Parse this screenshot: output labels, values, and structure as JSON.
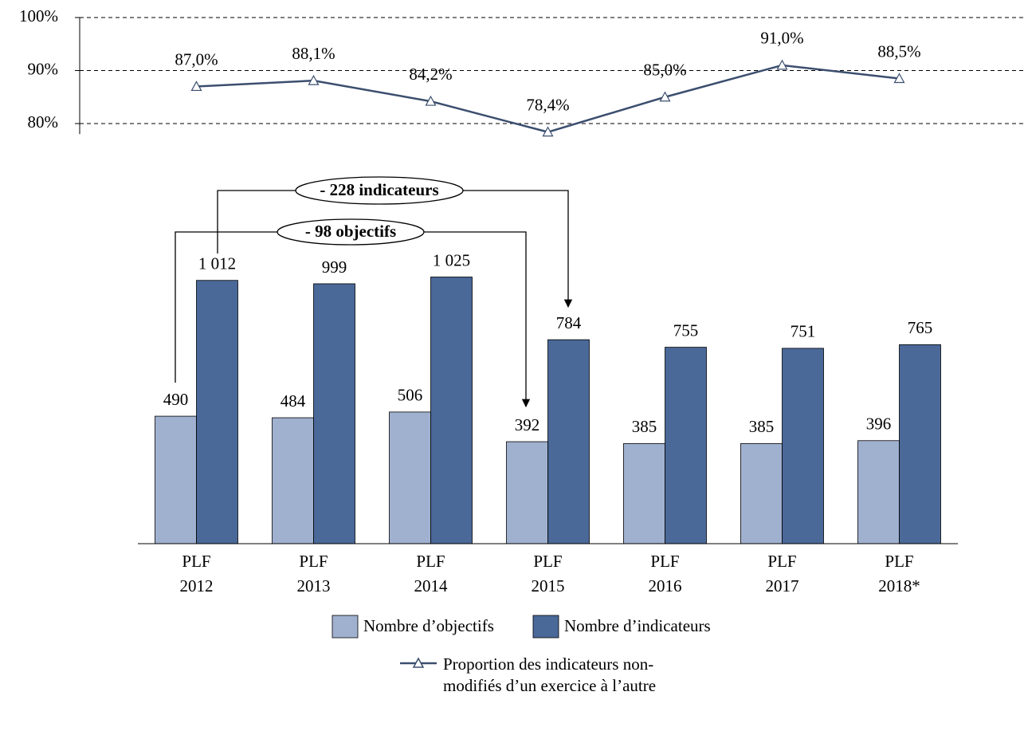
{
  "chart_data": [
    {
      "type": "line",
      "ylim": [
        78,
        100
      ],
      "yticks": [
        {
          "value": 80,
          "label": "80%"
        },
        {
          "value": 90,
          "label": "90%"
        },
        {
          "value": 100,
          "label": "100%"
        }
      ],
      "grid": true,
      "series": [
        {
          "name": "Proportion des indicateurs non-modifiés d’un exercice à l’autre",
          "color": "#3b4e6e",
          "values": [
            87.0,
            88.1,
            84.2,
            78.4,
            85.0,
            91.0,
            88.5
          ],
          "value_labels": [
            "87,0%",
            "88,1%",
            "84,2%",
            "78,4%",
            "85,0%",
            "91,0%",
            "88,5%"
          ]
        }
      ]
    },
    {
      "type": "bar",
      "categories": [
        [
          "PLF",
          "2012"
        ],
        [
          "PLF",
          "2013"
        ],
        [
          "PLF",
          "2014"
        ],
        [
          "PLF",
          "2015"
        ],
        [
          "PLF",
          "2016"
        ],
        [
          "PLF",
          "2017"
        ],
        [
          "PLF",
          "2018*"
        ]
      ],
      "ylim": [
        0,
        1100
      ],
      "series": [
        {
          "name": "Nombre d’objectifs",
          "color": "#a0b1cf",
          "values": [
            490,
            484,
            506,
            392,
            385,
            385,
            396
          ]
        },
        {
          "name": "Nombre d’indicateurs",
          "color": "#4a6898",
          "values": [
            1012,
            999,
            1025,
            784,
            755,
            751,
            765
          ],
          "value_labels": [
            "1 012",
            "999",
            "1 025",
            "784",
            "755",
            "751",
            "765"
          ]
        }
      ],
      "annotations": [
        "- 228 indicateurs",
        "- 98 objectifs"
      ]
    }
  ]
}
